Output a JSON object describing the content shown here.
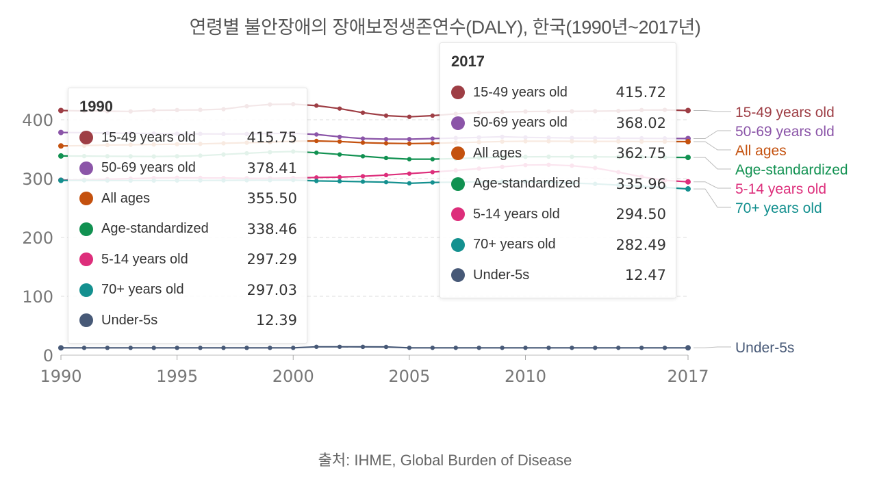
{
  "chart_data": {
    "type": "line",
    "title": "연령별 불안장애의 장애보정생존연수(DALY), 한국(1990년~2017년)",
    "source": "출처: IHME, Global Burden of Disease",
    "x": [
      1990,
      1991,
      1992,
      1993,
      1994,
      1995,
      1996,
      1997,
      1998,
      1999,
      2000,
      2001,
      2002,
      2003,
      2004,
      2005,
      2006,
      2007,
      2008,
      2009,
      2010,
      2011,
      2012,
      2013,
      2014,
      2015,
      2016,
      2017
    ],
    "x_ticks": [
      "1990",
      "1995",
      "2000",
      "2005",
      "2010",
      "2017"
    ],
    "x_tick_values": [
      1990,
      1995,
      2000,
      2005,
      2010,
      2017
    ],
    "y_ticks": [
      "0",
      "100",
      "200",
      "300",
      "400"
    ],
    "y_tick_values": [
      0,
      100,
      200,
      300,
      400
    ],
    "ylim": [
      0,
      420
    ],
    "grid": true,
    "series": [
      {
        "name": "15-49 years old",
        "color": "#9e3e45",
        "values": [
          415.75,
          415,
          414.5,
          414.2,
          416,
          416.5,
          416.8,
          418,
          423,
          426,
          426.5,
          424,
          419,
          412,
          407,
          405,
          407,
          410,
          412,
          413,
          414,
          414.2,
          414.3,
          414.5,
          415,
          416.5,
          416.8,
          415.72
        ]
      },
      {
        "name": "50-69 years old",
        "color": "#8b55a8",
        "values": [
          378.41,
          378,
          377.5,
          377,
          376.6,
          376.2,
          376,
          375.8,
          376,
          376.5,
          377,
          375,
          371,
          368,
          367,
          367,
          368,
          369,
          370,
          371,
          370,
          369.5,
          369,
          368.8,
          368.6,
          368.5,
          368.3,
          368.02
        ]
      },
      {
        "name": "All ages",
        "color": "#c4510e",
        "values": [
          355.5,
          356,
          357,
          357.5,
          358,
          358.5,
          359,
          360,
          361,
          362,
          363.5,
          364,
          363,
          361,
          360,
          359.5,
          360,
          361,
          362,
          363,
          363.5,
          363.5,
          363.4,
          363.3,
          363.2,
          363,
          362.9,
          362.75
        ]
      },
      {
        "name": "Age-standardized",
        "color": "#119151",
        "values": [
          338.46,
          338.2,
          338,
          337.8,
          337.6,
          338,
          339,
          341,
          343,
          345,
          346,
          344,
          341,
          338,
          335,
          333,
          333,
          334,
          335.5,
          336.5,
          337,
          337.2,
          337.1,
          337,
          336.8,
          336.5,
          336.2,
          335.96
        ]
      },
      {
        "name": "5-14 years old",
        "color": "#dd2e7b",
        "values": [
          297.29,
          298,
          299,
          300,
          301,
          301.5,
          301.2,
          301,
          300.5,
          300.5,
          301,
          302,
          302.5,
          304,
          306,
          308.5,
          311,
          314,
          317,
          320,
          323,
          323.5,
          322,
          318,
          311,
          303,
          297,
          294.5
        ]
      },
      {
        "name": "70+ years old",
        "color": "#14908f",
        "values": [
          297.03,
          297,
          296.8,
          296.7,
          296.7,
          296.8,
          296.9,
          297,
          297.2,
          297.3,
          297.5,
          296,
          295.5,
          294.8,
          294,
          292,
          293.5,
          294,
          294.5,
          294.8,
          295,
          294,
          292.5,
          291,
          289,
          287,
          285,
          282.49
        ]
      },
      {
        "name": "Under-5s",
        "color": "#475977",
        "values": [
          12.39,
          12.4,
          12.4,
          12.4,
          12.4,
          12.4,
          12.4,
          12.4,
          12.4,
          12.4,
          12.4,
          14.2,
          14.2,
          14.1,
          14.0,
          12.45,
          12.45,
          12.45,
          12.45,
          12.45,
          12.45,
          12.45,
          12.45,
          12.46,
          12.46,
          12.46,
          12.47,
          12.47
        ]
      }
    ],
    "end_labels": [
      "15-49 years old",
      "50-69 years old",
      "All ages",
      "Age-standardized",
      "5-14 years old",
      "70+ years old",
      "Under-5s"
    ],
    "tooltips": [
      {
        "year": "1990",
        "rows": [
          {
            "name": "15-49 years old",
            "value": "415.75",
            "color": "#9e3e45"
          },
          {
            "name": "50-69 years old",
            "value": "378.41",
            "color": "#8b55a8"
          },
          {
            "name": "All ages",
            "value": "355.50",
            "color": "#c4510e"
          },
          {
            "name": "Age-standardized",
            "value": "338.46",
            "color": "#119151"
          },
          {
            "name": "5-14 years old",
            "value": "297.29",
            "color": "#dd2e7b"
          },
          {
            "name": "70+ years old",
            "value": "297.03",
            "color": "#14908f"
          },
          {
            "name": "Under-5s",
            "value": "12.39",
            "color": "#475977"
          }
        ]
      },
      {
        "year": "2017",
        "rows": [
          {
            "name": "15-49 years old",
            "value": "415.72",
            "color": "#9e3e45"
          },
          {
            "name": "50-69 years old",
            "value": "368.02",
            "color": "#8b55a8"
          },
          {
            "name": "All ages",
            "value": "362.75",
            "color": "#c4510e"
          },
          {
            "name": "Age-standardized",
            "value": "335.96",
            "color": "#119151"
          },
          {
            "name": "5-14 years old",
            "value": "294.50",
            "color": "#dd2e7b"
          },
          {
            "name": "70+ years old",
            "value": "282.49",
            "color": "#14908f"
          },
          {
            "name": "Under-5s",
            "value": "12.47",
            "color": "#475977"
          }
        ]
      }
    ]
  }
}
